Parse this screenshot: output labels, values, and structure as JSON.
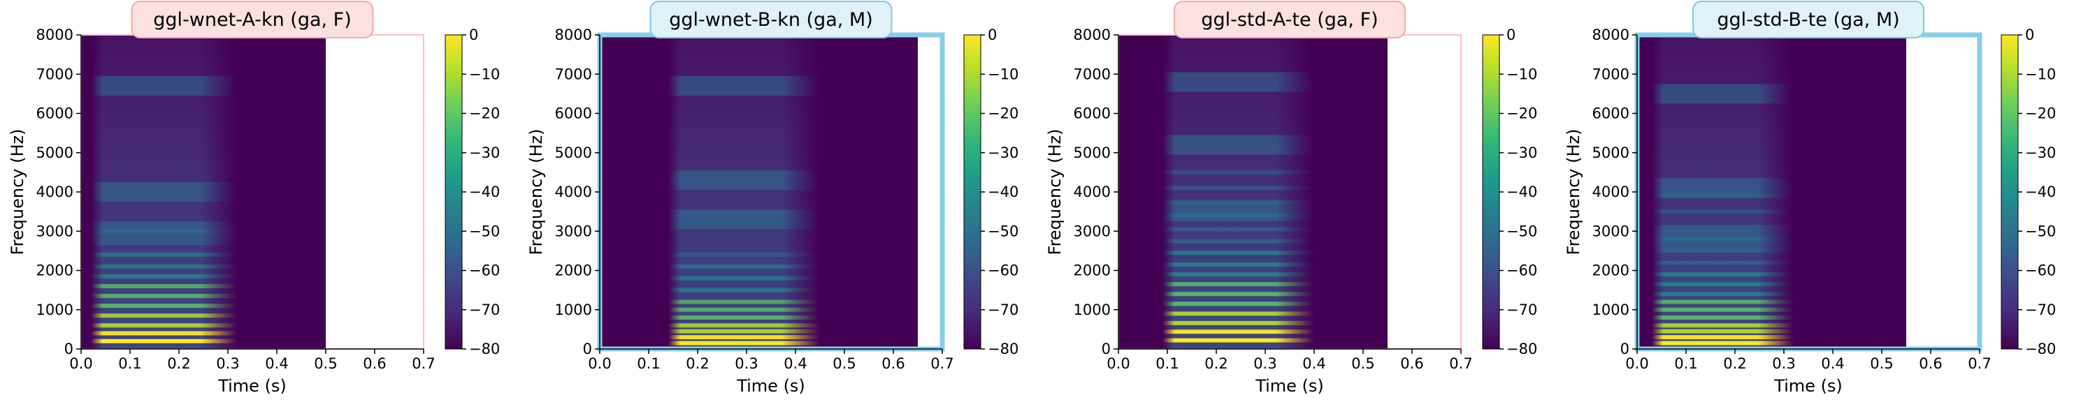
{
  "chart_data": [
    {
      "type": "heatmap",
      "title": "ggl-wnet-A-kn (ga, F)",
      "title_style": "female",
      "xlabel": "Time (s)",
      "ylabel": "Frequency (Hz)",
      "xlim": [
        0,
        0.7
      ],
      "ylim": [
        0,
        8000
      ],
      "xticks": [
        "0.0",
        "0.1",
        "0.2",
        "0.3",
        "0.4",
        "0.5",
        "0.6",
        "0.7"
      ],
      "yticks": [
        "0",
        "1000",
        "2000",
        "3000",
        "4000",
        "5000",
        "6000",
        "7000",
        "8000"
      ],
      "data_end_s": 0.5,
      "speech_start_s": 0.02,
      "speech_end_s": 0.32,
      "harmonics": [
        200,
        400,
        600,
        850,
        1100,
        1350,
        1600,
        1850,
        2100,
        2400,
        2700,
        3000
      ],
      "formant_bands_hz": [
        3000,
        4000,
        6700
      ],
      "colorbar": {
        "label": "",
        "range": [
          -80,
          0
        ],
        "ticks": [
          "0",
          "−10",
          "−20",
          "−30",
          "−40",
          "−50",
          "−60",
          "−70",
          "−80"
        ]
      },
      "frame_color": "#ffc0cb"
    },
    {
      "type": "heatmap",
      "title": "ggl-wnet-B-kn (ga, M)",
      "title_style": "male",
      "xlabel": "Time (s)",
      "ylabel": "Frequency (Hz)",
      "xlim": [
        0,
        0.7
      ],
      "ylim": [
        0,
        8000
      ],
      "xticks": [
        "0.0",
        "0.1",
        "0.2",
        "0.3",
        "0.4",
        "0.5",
        "0.6",
        "0.7"
      ],
      "yticks": [
        "0",
        "1000",
        "2000",
        "3000",
        "4000",
        "5000",
        "6000",
        "7000",
        "8000"
      ],
      "data_end_s": 0.65,
      "speech_start_s": 0.14,
      "speech_end_s": 0.45,
      "harmonics": [
        150,
        300,
        450,
        600,
        800,
        1000,
        1200,
        1500,
        1800,
        2100,
        2400
      ],
      "formant_bands_hz": [
        3300,
        4300,
        6700
      ],
      "colorbar": {
        "label": "",
        "range": [
          -80,
          0
        ],
        "ticks": [
          "0",
          "−10",
          "−20",
          "−30",
          "−40",
          "−50",
          "−60",
          "−70",
          "−80"
        ]
      },
      "frame_color": "#87ceeb"
    },
    {
      "type": "heatmap",
      "title": "ggl-std-A-te (ga, F)",
      "title_style": "female",
      "xlabel": "Time (s)",
      "ylabel": "Frequency (Hz)",
      "xlim": [
        0,
        0.7
      ],
      "ylim": [
        0,
        8000
      ],
      "xticks": [
        "0.0",
        "0.1",
        "0.2",
        "0.3",
        "0.4",
        "0.5",
        "0.6",
        "0.7"
      ],
      "yticks": [
        "0",
        "1000",
        "2000",
        "3000",
        "4000",
        "5000",
        "6000",
        "7000",
        "8000"
      ],
      "data_end_s": 0.55,
      "speech_start_s": 0.09,
      "speech_end_s": 0.4,
      "harmonics": [
        220,
        440,
        660,
        900,
        1150,
        1400,
        1650,
        1900,
        2150,
        2450,
        2750,
        3050,
        3400,
        3750,
        4100,
        4500
      ],
      "formant_bands_hz": [
        3500,
        5200,
        6800
      ],
      "colorbar": {
        "label": "",
        "range": [
          -80,
          0
        ],
        "ticks": [
          "0",
          "−10",
          "−20",
          "−30",
          "−40",
          "−50",
          "−60",
          "−70",
          "−80"
        ]
      },
      "frame_color": "#ffc0cb"
    },
    {
      "type": "heatmap",
      "title": "ggl-std-B-te (ga, M)",
      "title_style": "male",
      "xlabel": "Time (s)",
      "ylabel": "Frequency (Hz)",
      "xlim": [
        0,
        0.7
      ],
      "ylim": [
        0,
        8000
      ],
      "xticks": [
        "0.0",
        "0.1",
        "0.2",
        "0.3",
        "0.4",
        "0.5",
        "0.6",
        "0.7"
      ],
      "yticks": [
        "0",
        "1000",
        "2000",
        "3000",
        "4000",
        "5000",
        "6000",
        "7000",
        "8000"
      ],
      "data_end_s": 0.55,
      "speech_start_s": 0.03,
      "speech_end_s": 0.32,
      "harmonics": [
        150,
        300,
        450,
        600,
        800,
        1000,
        1200,
        1400,
        1650,
        1900,
        2200,
        2500,
        2800,
        3100,
        3500,
        3900
      ],
      "formant_bands_hz": [
        2800,
        4100,
        6500
      ],
      "colorbar": {
        "label": "",
        "range": [
          -80,
          0
        ],
        "ticks": [
          "0",
          "−10",
          "−20",
          "−30",
          "−40",
          "−50",
          "−60",
          "−70",
          "−80"
        ]
      },
      "frame_color": "#87ceeb"
    }
  ]
}
